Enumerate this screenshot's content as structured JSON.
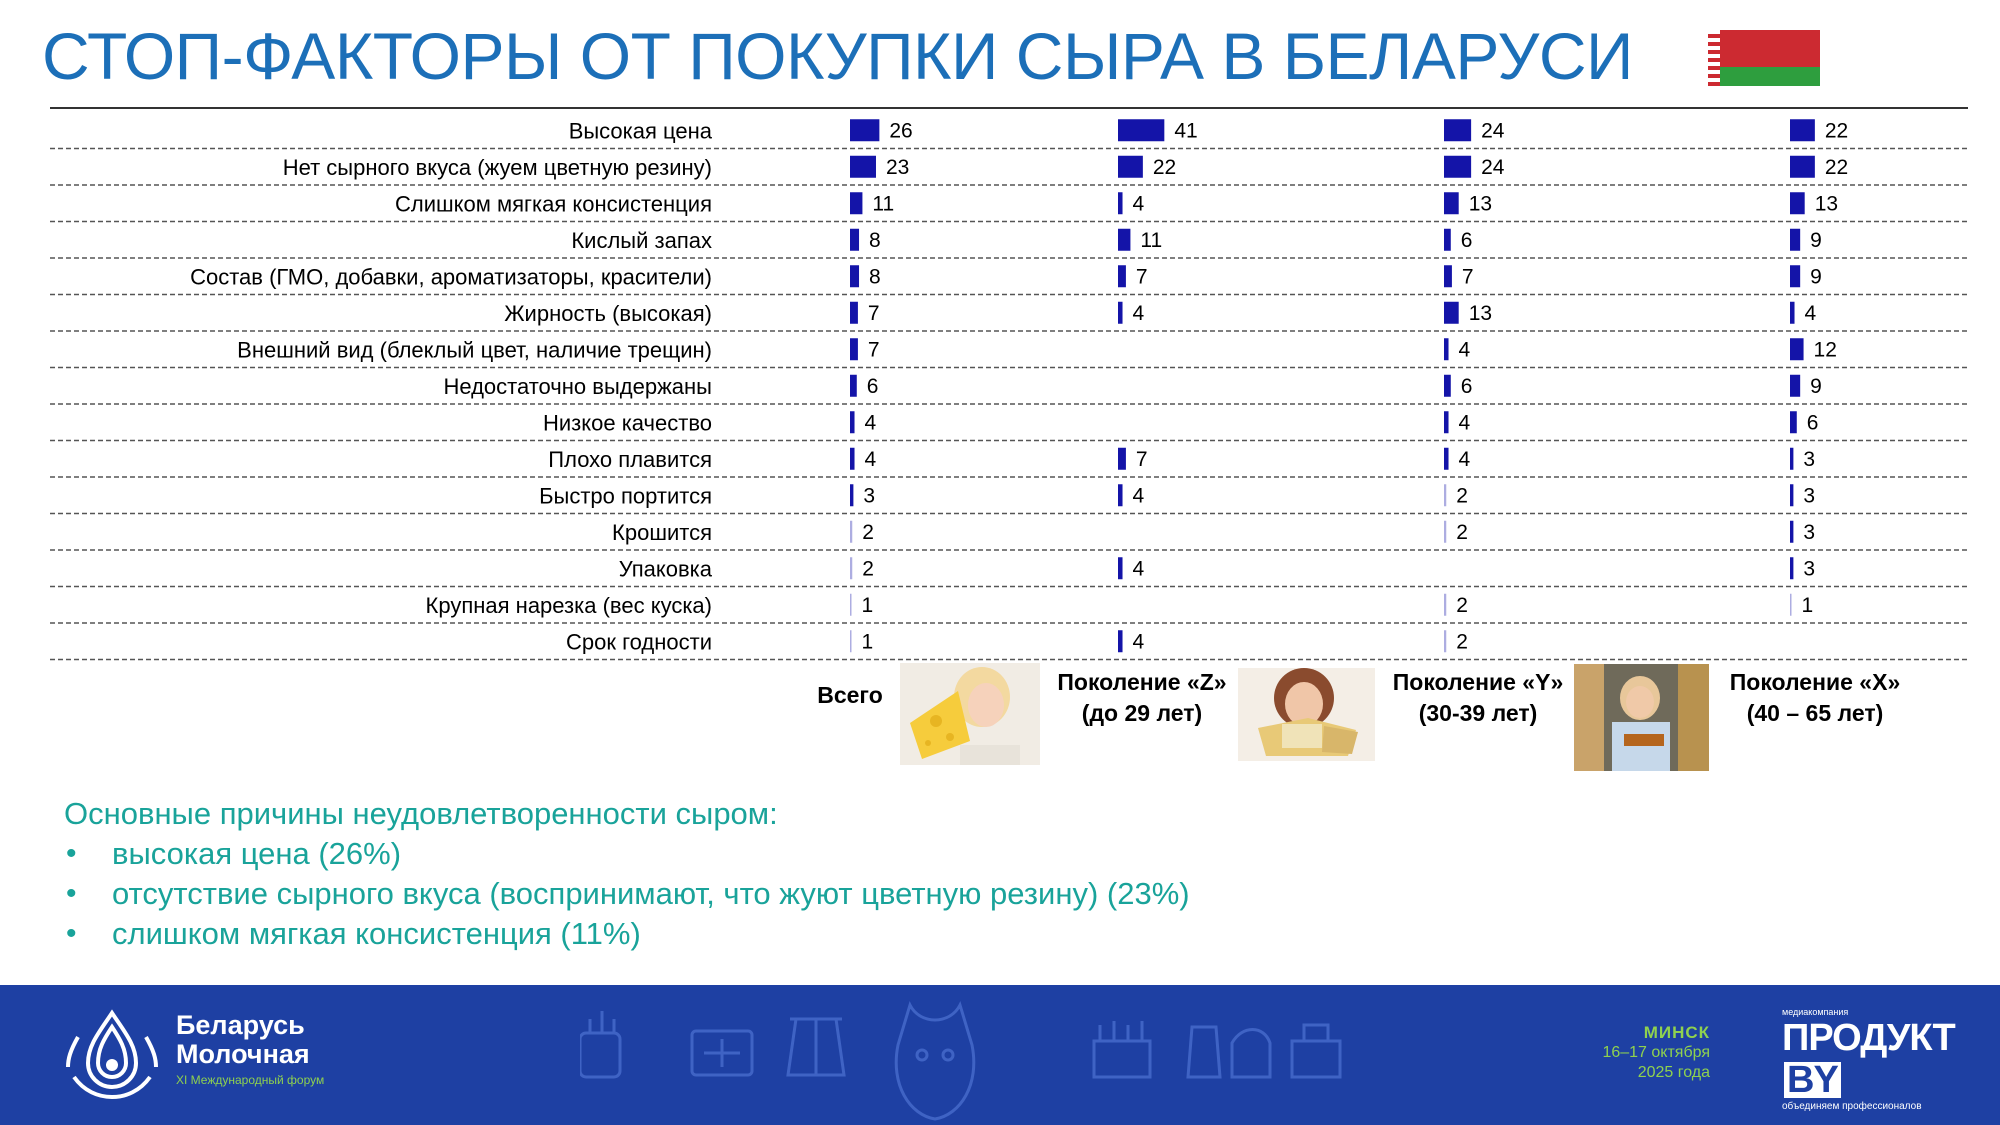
{
  "title": "СТОП-ФАКТОРЫ ОТ ПОКУПКИ СЫРА В БЕЛАРУСИ",
  "chart_data": {
    "type": "bar",
    "orientation": "horizontal",
    "unit": "%",
    "bar_color": "#1414a8",
    "categories": [
      "Высокая цена",
      "Нет сырного вкуса (жуем цветную резину)",
      "Слишком мягкая консистенция",
      "Кислый запах",
      "Состав (ГМО, добавки, ароматизаторы, красители)",
      "Жирность (высокая)",
      "Внешний вид (блеклый цвет, наличие трещин)",
      "Недостаточно выдержаны",
      "Низкое качество",
      "Плохо плавится",
      "Быстро портится",
      "Крошится",
      "Упаковка",
      "Крупная нарезка (вес куска)",
      "Срок годности"
    ],
    "series": [
      {
        "name": "Всего",
        "values": [
          26,
          23,
          11,
          8,
          8,
          7,
          7,
          6,
          4,
          4,
          3,
          2,
          2,
          1,
          1
        ]
      },
      {
        "name": "Поколение «Z» (до 29 лет)",
        "values": [
          41,
          22,
          4,
          11,
          7,
          4,
          null,
          null,
          null,
          7,
          4,
          null,
          4,
          null,
          4
        ]
      },
      {
        "name": "Поколение «Y» (30-39 лет)",
        "values": [
          24,
          24,
          13,
          6,
          7,
          13,
          4,
          6,
          4,
          4,
          2,
          2,
          null,
          2,
          2
        ]
      },
      {
        "name": "Поколение «X» (40 – 65 лет)",
        "values": [
          22,
          22,
          13,
          9,
          9,
          4,
          12,
          9,
          6,
          3,
          3,
          3,
          3,
          1,
          null
        ]
      }
    ]
  },
  "legend": [
    {
      "line1": "Всего",
      "line2": ""
    },
    {
      "line1": "Поколение «Z»",
      "line2": "(до 29 лет)"
    },
    {
      "line1": "Поколение «Y»",
      "line2": "(30-39 лет)"
    },
    {
      "line1": "Поколение «X»",
      "line2": "(40 – 65 лет)"
    }
  ],
  "summary": {
    "title": "Основные причины неудовлетворенности сыром:",
    "items": [
      "высокая цена (26%)",
      "отсутствие сырного вкуса (воспринимают, что жуют цветную резину) (23%)",
      "слишком мягкая консистенция (11%)"
    ]
  },
  "footer": {
    "brand_line1": "Беларусь",
    "brand_line2": "Молочная",
    "brand_sub": "XI Международный форум",
    "city": "МИНСК",
    "dates": "16–17 октября",
    "year": "2025 года",
    "company_small": "медиакомпания",
    "company_name": "ПРОДУКТ",
    "company_suffix": "BY",
    "company_tagline": "объединяем профессионалов"
  },
  "colors": {
    "title": "#1c6fb8",
    "summary": "#19a39a",
    "footer_bg": "#1e40a3",
    "footer_accent": "#8fd14f"
  }
}
